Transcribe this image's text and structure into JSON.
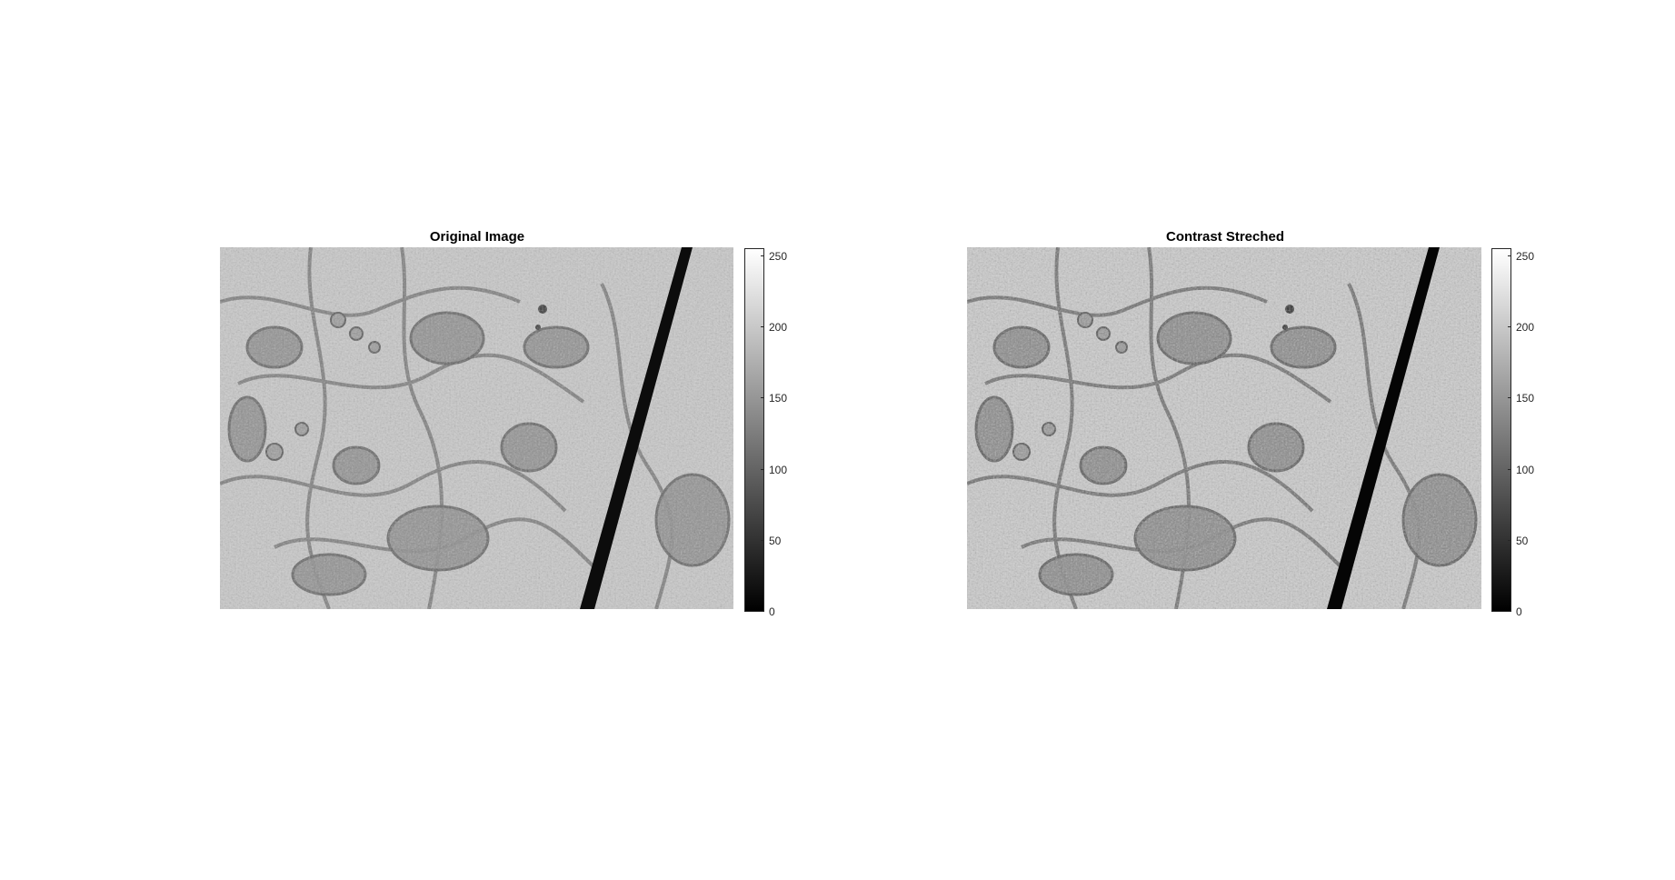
{
  "figure": {
    "panels": [
      {
        "id": "original",
        "title": "Original Image",
        "colorbar": {
          "min": 0,
          "max": 255,
          "ticks": [
            "0",
            "50",
            "100",
            "150",
            "200",
            "250"
          ],
          "tick_values": [
            0,
            50,
            100,
            150,
            200,
            250
          ],
          "colormap": "gray"
        }
      },
      {
        "id": "stretched",
        "title": "Contrast Streched",
        "colorbar": {
          "min": 0,
          "max": 255,
          "ticks": [
            "0",
            "50",
            "100",
            "150",
            "200",
            "250"
          ],
          "tick_values": [
            0,
            50,
            100,
            150,
            200,
            250
          ],
          "colormap": "gray"
        }
      }
    ],
    "image_content": "grayscale-electron-micrograph"
  }
}
